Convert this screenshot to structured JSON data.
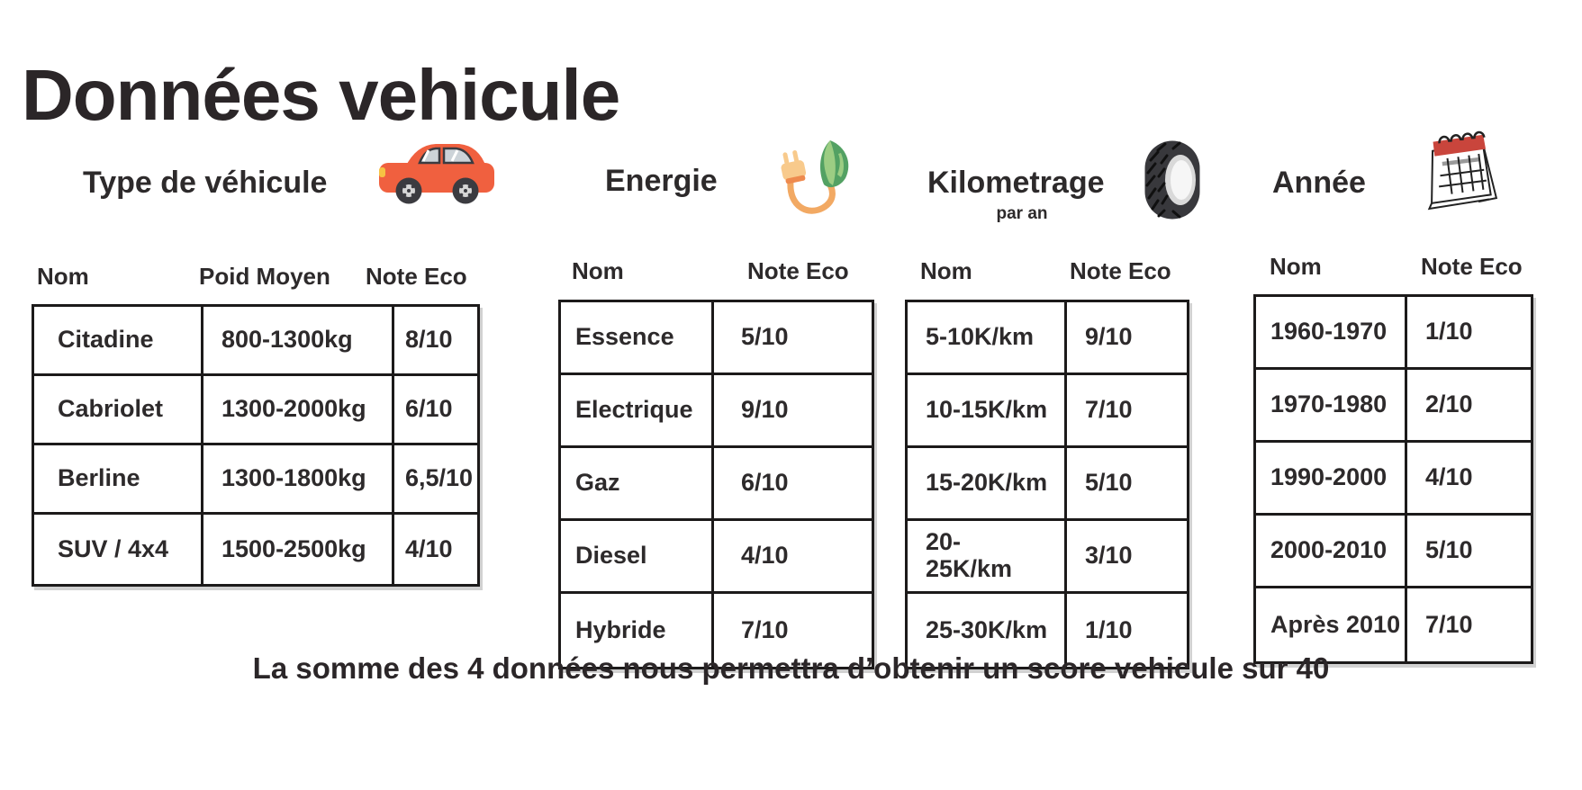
{
  "title": "Données vehicule",
  "footer": "La somme des 4 données nous permettra d’obtenir un score vehicule sur 40",
  "sections": [
    {
      "id": "type-de-vehicule",
      "heading": "Type de véhicule",
      "icon": "car-icon",
      "columns": [
        "Nom",
        "Poid Moyen",
        "Note Eco"
      ],
      "rows": [
        [
          "Citadine",
          "800-1300kg",
          "8/10"
        ],
        [
          "Cabriolet",
          "1300-2000kg",
          "6/10"
        ],
        [
          "Berline",
          "1300-1800kg",
          "6,5/10"
        ],
        [
          "SUV / 4x4",
          "1500-2500kg",
          "4/10"
        ]
      ]
    },
    {
      "id": "energie",
      "heading": "Energie",
      "icon": "eco-plug-icon",
      "columns": [
        "Nom",
        "Note Eco"
      ],
      "rows": [
        [
          "Essence",
          "5/10"
        ],
        [
          "Electrique",
          "9/10"
        ],
        [
          "Gaz",
          "6/10"
        ],
        [
          "Diesel",
          "4/10"
        ],
        [
          "Hybride",
          "7/10"
        ]
      ]
    },
    {
      "id": "kilometrage",
      "heading": "Kilometrage",
      "subheading": "par an",
      "icon": "tire-icon",
      "columns": [
        "Nom",
        "Note Eco"
      ],
      "rows": [
        [
          "5-10K/km",
          "9/10"
        ],
        [
          "10-15K/km",
          "7/10"
        ],
        [
          "15-20K/km",
          "5/10"
        ],
        [
          "20-\n25K/km",
          "3/10"
        ],
        [
          "25-30K/km",
          "1/10"
        ]
      ]
    },
    {
      "id": "annee",
      "heading": "Année",
      "icon": "calendar-icon",
      "columns": [
        "Nom",
        "Note Eco"
      ],
      "rows": [
        [
          "1960-1970",
          "1/10"
        ],
        [
          "1970-1980",
          "2/10"
        ],
        [
          "1990-2000",
          "4/10"
        ],
        [
          "2000-2010",
          "5/10"
        ],
        [
          "Après 2010",
          "7/10"
        ]
      ]
    }
  ],
  "colors": {
    "text": "#2d2a2b",
    "table_border": "#1c1a1a",
    "car_body": "#f0603f",
    "car_headlight": "#f6c343",
    "car_glass": "#ccd3d8",
    "plug_cord": "#f2a963",
    "plug_body": "#f8ca8c",
    "plug_band": "#ee8a4e",
    "leaf_dark": "#53a163",
    "leaf_light": "#9ccd83",
    "tire_dark": "#38383c",
    "tire_rim": "#f6f6f6",
    "calendar_red": "#c9453c"
  }
}
